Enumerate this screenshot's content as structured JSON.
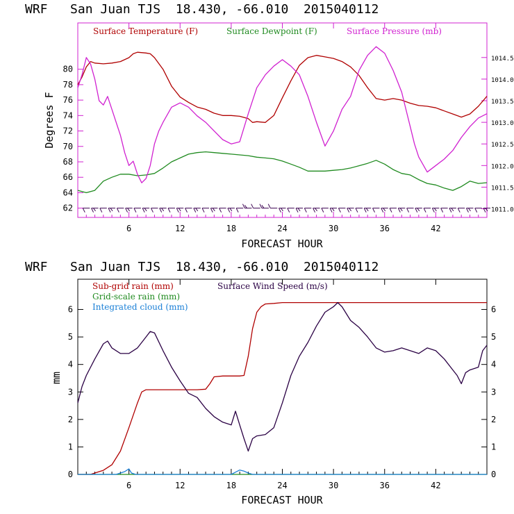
{
  "chart_data": [
    {
      "type": "line",
      "title": "WRF   San Juan TJS  18.430, -66.010  2015040112",
      "xlabel": "FORECAST HOUR",
      "ylabel": "Degrees F",
      "xlim": [
        0,
        48
      ],
      "ylim": [
        60.8,
        86
      ],
      "y2lim": [
        1010.8,
        1015.3
      ],
      "x_ticks": [
        6,
        12,
        18,
        24,
        30,
        36,
        42
      ],
      "y_ticks": [
        62,
        64,
        66,
        68,
        70,
        72,
        74,
        76,
        78,
        80
      ],
      "y2_ticks": [
        "1011.0",
        "1011.5",
        "1012.0",
        "1012.5",
        "1013.0",
        "1013.5",
        "1014.0",
        "1014.5"
      ],
      "grid": false,
      "legend_position": "top",
      "series": [
        {
          "name": "Surface Temperature (F)",
          "color": "#b00000",
          "axis": "left",
          "x": [
            0,
            0.5,
            1,
            1.5,
            2,
            3,
            4,
            5,
            6,
            6.5,
            7,
            8,
            8.5,
            9,
            10,
            11,
            12,
            13,
            14,
            15,
            16,
            17,
            18,
            19,
            20,
            20.5,
            21,
            22,
            23,
            24,
            25,
            26,
            27,
            28,
            29,
            30,
            31,
            32,
            33,
            34,
            35,
            36,
            37,
            38,
            39,
            40,
            41,
            42,
            43,
            44,
            45,
            46,
            47,
            48
          ],
          "values": [
            78,
            79,
            80.3,
            81,
            80.8,
            80.7,
            80.8,
            81,
            81.5,
            82,
            82.2,
            82.1,
            82,
            81.5,
            80,
            77.8,
            76.4,
            75.7,
            75.1,
            74.8,
            74.3,
            74,
            74,
            73.9,
            73.6,
            73.1,
            73.2,
            73.1,
            74,
            76.3,
            78.5,
            80.5,
            81.5,
            81.8,
            81.6,
            81.4,
            81,
            80.3,
            79.2,
            77.6,
            76.2,
            76,
            76.2,
            76,
            75.6,
            75.3,
            75.2,
            75,
            74.6,
            74.2,
            73.8,
            74.2,
            75.2,
            76.5
          ]
        },
        {
          "name": "Surface Dewpoint (F)",
          "color": "#1f8a1f",
          "axis": "left",
          "x": [
            0,
            1,
            2,
            3,
            4,
            5,
            6,
            7,
            8,
            9,
            10,
            11,
            12,
            13,
            14,
            15,
            16,
            17,
            18,
            19,
            20,
            21,
            22,
            23,
            24,
            25,
            26,
            27,
            28,
            29,
            30,
            31,
            32,
            33,
            34,
            35,
            36,
            37,
            38,
            39,
            40,
            41,
            42,
            43,
            44,
            45,
            46,
            47,
            48
          ],
          "values": [
            64.3,
            64,
            64.3,
            65.5,
            66,
            66.4,
            66.4,
            66.2,
            66.3,
            66.5,
            67.2,
            68,
            68.5,
            69,
            69.2,
            69.3,
            69.2,
            69.1,
            69,
            68.9,
            68.8,
            68.6,
            68.5,
            68.4,
            68.1,
            67.7,
            67.3,
            66.8,
            66.8,
            66.8,
            66.9,
            67,
            67.2,
            67.5,
            67.8,
            68.2,
            67.7,
            67,
            66.5,
            66.3,
            65.7,
            65.2,
            65,
            64.6,
            64.3,
            64.8,
            65.5,
            65.2,
            65.3
          ]
        },
        {
          "name": "Surface Pressure (mb)",
          "color": "#d020d0",
          "axis": "right",
          "x": [
            0,
            0.5,
            1,
            1.5,
            2,
            2.5,
            3,
            3.5,
            4,
            4.5,
            5,
            5.5,
            6,
            6.5,
            7,
            7.5,
            8,
            8.5,
            9,
            9.5,
            10,
            11,
            12,
            13,
            14,
            15,
            16,
            17,
            18,
            19,
            20,
            21,
            22,
            23,
            24,
            25,
            26,
            27,
            28,
            29,
            30,
            31,
            32,
            33,
            34,
            35,
            36,
            37,
            38,
            38.5,
            39,
            39.5,
            40,
            41,
            42,
            43,
            44,
            45,
            46,
            47,
            48
          ],
          "values": [
            1013.8,
            1014.1,
            1014.5,
            1014.35,
            1014.0,
            1013.5,
            1013.4,
            1013.6,
            1013.3,
            1013.0,
            1012.7,
            1012.3,
            1012.0,
            1012.1,
            1011.8,
            1011.6,
            1011.7,
            1012.0,
            1012.5,
            1012.8,
            1013.0,
            1013.35,
            1013.45,
            1013.35,
            1013.15,
            1013.0,
            1012.8,
            1012.6,
            1012.5,
            1012.55,
            1013.2,
            1013.8,
            1014.1,
            1014.3,
            1014.45,
            1014.3,
            1014.1,
            1013.6,
            1013.0,
            1012.45,
            1012.8,
            1013.3,
            1013.6,
            1014.2,
            1014.55,
            1014.75,
            1014.6,
            1014.2,
            1013.7,
            1013.3,
            1012.9,
            1012.5,
            1012.2,
            1011.85,
            1012.0,
            1012.15,
            1012.35,
            1012.65,
            1012.9,
            1013.1,
            1013.2
          ]
        }
      ],
      "wind_barbs": {
        "y": 62,
        "x_start": 1,
        "x_end": 48,
        "color": "#3a0050",
        "label": "wind barbs"
      }
    },
    {
      "type": "line",
      "title": "WRF   San Juan TJS  18.430, -66.010  2015040112",
      "xlabel": "FORECAST HOUR",
      "ylabel": "mm",
      "xlim": [
        0,
        48
      ],
      "ylim": [
        0,
        7.1
      ],
      "y2lim": [
        0,
        7.1
      ],
      "x_ticks": [
        6,
        12,
        18,
        24,
        30,
        36,
        42
      ],
      "y_ticks": [
        0,
        1,
        2,
        3,
        4,
        5,
        6
      ],
      "y2_ticks": [
        0,
        1,
        2,
        3,
        4,
        5,
        6
      ],
      "grid": false,
      "legend_position": "top-left",
      "series": [
        {
          "name": "Sub-grid rain (mm)",
          "color": "#b00000",
          "axis": "left",
          "x": [
            0,
            1.5,
            2,
            3,
            4,
            5,
            6,
            7,
            7.5,
            8,
            9,
            10,
            11,
            12,
            13,
            14,
            15,
            15.5,
            16,
            17,
            18,
            19,
            19.5,
            20,
            20.5,
            21,
            21.5,
            22,
            23,
            24,
            48
          ],
          "values": [
            0,
            0,
            0.05,
            0.15,
            0.35,
            0.85,
            1.7,
            2.6,
            3.0,
            3.08,
            3.08,
            3.08,
            3.08,
            3.08,
            3.08,
            3.08,
            3.1,
            3.3,
            3.55,
            3.58,
            3.58,
            3.58,
            3.6,
            4.3,
            5.3,
            5.9,
            6.1,
            6.2,
            6.22,
            6.25,
            6.25
          ]
        },
        {
          "name": "Grid-scale rain (mm)",
          "color": "#1f8a1f",
          "axis": "left",
          "x": [
            0,
            48
          ],
          "values": [
            0,
            0
          ]
        },
        {
          "name": "Integrated cloud (mm)",
          "color": "#1a7fd6",
          "axis": "left",
          "x": [
            0,
            4.5,
            5,
            5.5,
            6,
            6.3,
            6.8,
            18,
            18.5,
            19,
            19.5,
            20,
            20.5,
            48
          ],
          "values": [
            0,
            0,
            0.05,
            0.1,
            0.2,
            0.05,
            0,
            0,
            0.08,
            0.16,
            0.12,
            0.05,
            0,
            0
          ]
        },
        {
          "name": "Surface Wind Speed (m/s)",
          "color": "#2a0044",
          "axis": "right",
          "x": [
            0,
            0.5,
            1,
            2,
            3,
            3.5,
            4,
            5,
            6,
            7,
            8,
            8.5,
            9,
            10,
            11,
            12,
            13,
            14,
            15,
            16,
            17,
            18,
            18.5,
            19,
            19.5,
            20,
            20.5,
            21,
            22,
            23,
            24,
            25,
            26,
            27,
            28,
            29,
            30,
            30.5,
            31,
            32,
            33,
            34,
            35,
            36,
            37,
            38,
            39,
            40,
            41,
            42,
            43,
            44,
            44.5,
            45,
            45.5,
            46,
            47,
            47.5,
            48
          ],
          "values": [
            2.6,
            3.2,
            3.6,
            4.2,
            4.75,
            4.85,
            4.6,
            4.4,
            4.4,
            4.6,
            5.0,
            5.2,
            5.15,
            4.5,
            3.9,
            3.4,
            2.95,
            2.8,
            2.4,
            2.1,
            1.9,
            1.8,
            2.3,
            1.8,
            1.3,
            0.85,
            1.3,
            1.4,
            1.45,
            1.7,
            2.6,
            3.6,
            4.3,
            4.8,
            5.4,
            5.9,
            6.1,
            6.25,
            6.1,
            5.6,
            5.35,
            5.0,
            4.6,
            4.45,
            4.5,
            4.6,
            4.5,
            4.4,
            4.6,
            4.5,
            4.2,
            3.8,
            3.6,
            3.3,
            3.7,
            3.8,
            3.9,
            4.5,
            4.7
          ]
        }
      ]
    }
  ]
}
